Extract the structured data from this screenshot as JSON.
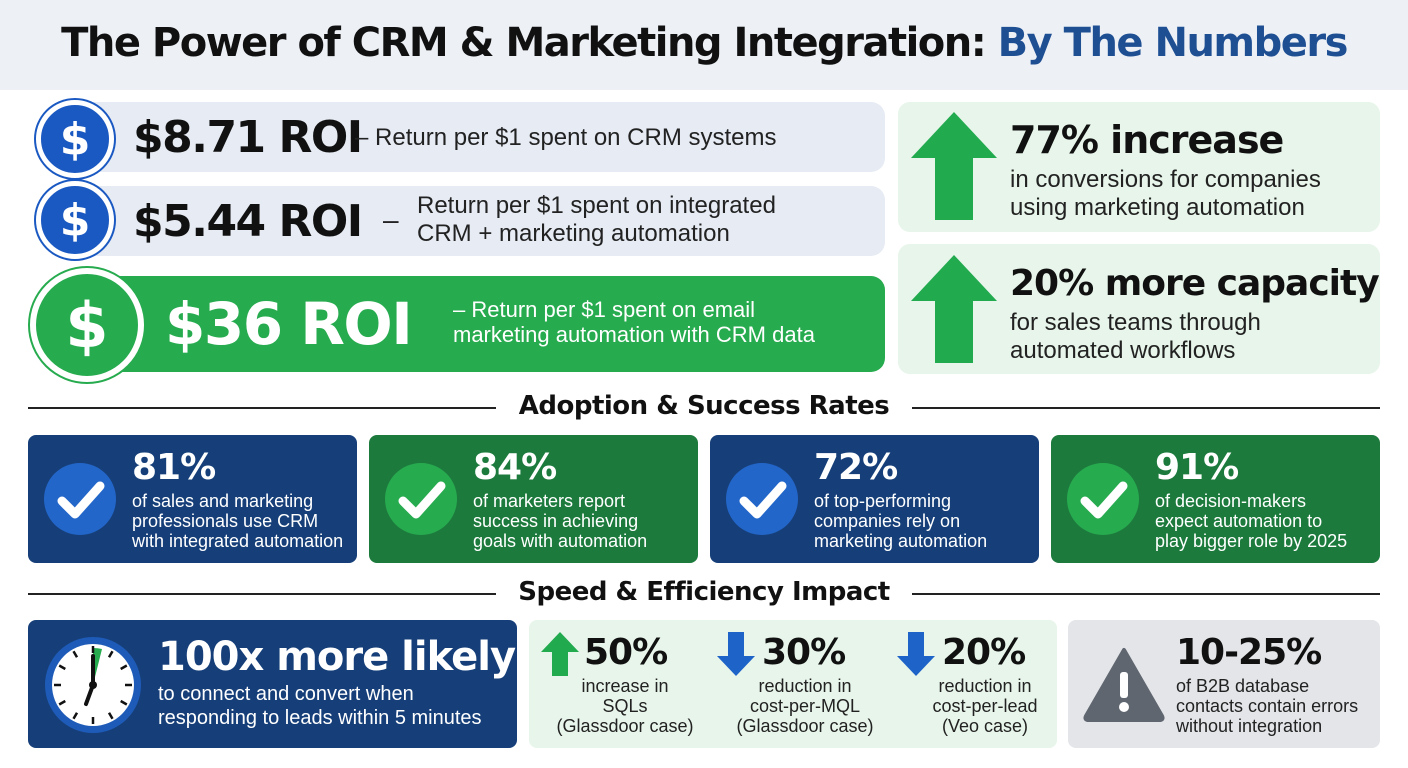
{
  "title": {
    "main": "The Power of CRM & Marketing Integration: ",
    "accent": "By The Numbers"
  },
  "roi": [
    {
      "value": "$8.71 ROI",
      "desc": "– Return per $1 spent on CRM systems",
      "icon": "dollar-icon"
    },
    {
      "value": "$5.44 ROI",
      "dash": "–",
      "desc_line1": "Return per $1 spent on integrated",
      "desc_line2": "CRM + marketing automation",
      "icon": "dollar-icon"
    },
    {
      "value": "$36 ROI",
      "desc_line1": "– Return per $1 spent on email",
      "desc_line2": "marketing automation with CRM data",
      "icon": "dollar-icon"
    }
  ],
  "dollar_symbol": "$",
  "stats": [
    {
      "headline": "77% increase",
      "line1": "in conversions for companies",
      "line2": "using marketing automation",
      "icon": "arrow-up-icon"
    },
    {
      "headline": "20% more capacity",
      "line1": "for sales teams through",
      "line2": "automated workflows",
      "icon": "arrow-up-icon"
    }
  ],
  "sections": {
    "adoption": "Adoption & Success Rates",
    "speed": "Speed & Efficiency Impact"
  },
  "adoption": [
    {
      "pct": "81%",
      "l1": "of sales and marketing",
      "l2": "professionals use CRM",
      "l3": "with integrated automation",
      "color": "#163f79"
    },
    {
      "pct": "84%",
      "l1": "of marketers report",
      "l2": "success in achieving",
      "l3": "goals with automation",
      "color": "#1c7a3d"
    },
    {
      "pct": "72%",
      "l1": "of top-performing",
      "l2": "companies rely on",
      "l3": "marketing automation",
      "color": "#163f79"
    },
    {
      "pct": "91%",
      "l1": "of decision-makers",
      "l2": "expect automation to",
      "l3": "play bigger role by 2025",
      "color": "#1c7a3d"
    }
  ],
  "speed": {
    "likely": {
      "headline": "100x more likely",
      "l1": "to connect and convert when",
      "l2": "responding to leads within 5 minutes",
      "icon": "clock-icon"
    },
    "items": [
      {
        "pct": "50%",
        "l1": "increase in",
        "l2": "SQLs",
        "l3": "(Glassdoor case)",
        "direction": "up"
      },
      {
        "pct": "30%",
        "l1": "reduction in",
        "l2": "cost-per-MQL",
        "l3": "(Glassdoor case)",
        "direction": "down"
      },
      {
        "pct": "20%",
        "l1": "reduction in",
        "l2": "cost-per-lead",
        "l3": "(Veo case)",
        "direction": "down"
      }
    ],
    "errors": {
      "pct": "10-25%",
      "l1": "of B2B database",
      "l2": "contacts contain errors",
      "l3": "without integration",
      "icon": "warning-icon"
    }
  },
  "colors": {
    "navy": "#163f79",
    "green": "#27ab4f",
    "dark_green": "#1c7a3d",
    "blue": "#1b59c2",
    "accent_title": "#1f4f93"
  }
}
